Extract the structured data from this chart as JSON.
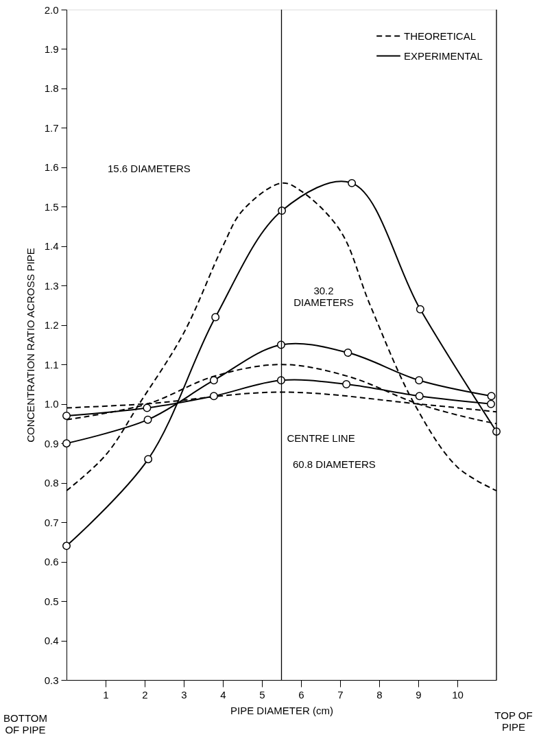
{
  "chart_data": {
    "type": "line",
    "xlabel": "PIPE DIAMETER (cm)",
    "ylabel": "CONCENTRATION RATIO ACROSS PIPE",
    "xlim": [
      0,
      11
    ],
    "xticks": [
      1,
      2,
      3,
      4,
      5,
      6,
      7,
      8,
      9,
      10
    ],
    "ylim": [
      0.3,
      2.0
    ],
    "yticks": [
      0.3,
      0.4,
      0.5,
      0.6,
      0.7,
      0.8,
      0.9,
      {
        "value": 1.0,
        "label": "1.0"
      },
      1.1,
      1.2,
      1.3,
      1.4,
      1.5,
      1.6,
      1.7,
      1.8,
      1.9,
      {
        "value": 2.0,
        "label": "2.0"
      }
    ],
    "grid": false,
    "legend": "top right",
    "series": [
      {
        "name": "THEORETICAL",
        "color": "#000000",
        "line_style": "dashed",
        "marker": "none",
        "x": [
          0,
          1,
          1.86,
          3,
          4,
          4.5,
          5.5,
          6,
          7,
          7.77,
          8.9,
          10,
          11
        ],
        "values": [
          0.78,
          0.87,
          1.0,
          1.18,
          1.4,
          1.49,
          1.56,
          1.54,
          1.44,
          1.25,
          1.0,
          0.84,
          0.78
        ]
      },
      {
        "name": "EXPERIMENTAL",
        "color": "#000000",
        "line_style": "solid",
        "marker": "circle",
        "x": [
          0,
          2.09,
          3.81,
          5.51,
          7.3,
          9.05,
          11
        ],
        "values": [
          0.64,
          0.86,
          1.22,
          1.49,
          1.56,
          1.24,
          0.93
        ]
      },
      {
        "color": "#000000",
        "line_style": "dashed",
        "marker": "none",
        "x": [
          0,
          2.07,
          3.77,
          5.5,
          7.2,
          9,
          10.5,
          11
        ],
        "values": [
          0.96,
          1.0,
          1.07,
          1.1,
          1.07,
          1.0,
          0.96,
          0.95
        ]
      },
      {
        "color": "#000000",
        "line_style": "solid",
        "marker": "circle",
        "x": [
          0,
          2.08,
          3.77,
          5.49,
          7.2,
          9.02,
          10.87
        ],
        "values": [
          0.9,
          0.96,
          1.06,
          1.15,
          1.13,
          1.06,
          1.02
        ]
      },
      {
        "color": "#000000",
        "line_style": "dashed",
        "marker": "none",
        "x": [
          0,
          2,
          5.5,
          9,
          11
        ],
        "values": [
          0.99,
          1.0,
          1.03,
          1.0,
          0.98
        ]
      },
      {
        "color": "#000000",
        "line_style": "solid",
        "marker": "circle",
        "x": [
          0,
          2.06,
          3.77,
          5.49,
          7.16,
          9.03,
          10.86
        ],
        "values": [
          0.97,
          0.99,
          1.02,
          1.06,
          1.05,
          1.02,
          1.0
        ]
      }
    ],
    "ref_lines": [
      {
        "axis": "x",
        "value": 5.5,
        "label": "CENTRE LINE",
        "color": "#000000"
      },
      {
        "axis": "x",
        "value": 11,
        "label": "TOP OF\nPIPE",
        "color": "#000000"
      }
    ],
    "annotations": [
      "15.6 DIAMETERS",
      "30.2\nDIAMETERS",
      "60.8 DIAMETERS",
      "BOTTOM\nOF PIPE"
    ]
  }
}
